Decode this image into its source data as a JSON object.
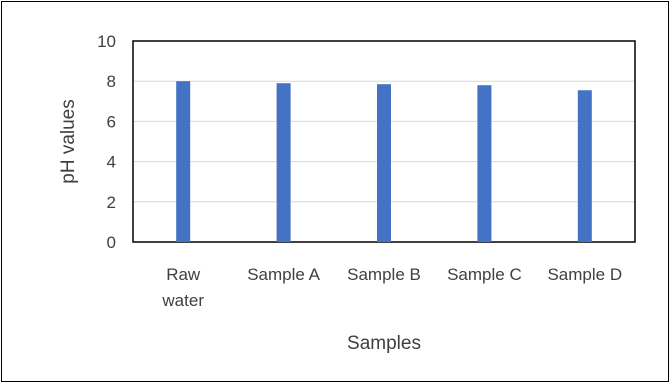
{
  "chart_data": {
    "type": "bar",
    "categories": [
      [
        "Raw",
        "water"
      ],
      [
        "Sample A"
      ],
      [
        "Sample B"
      ],
      [
        "Sample C"
      ],
      [
        "Sample D"
      ]
    ],
    "values": [
      8.0,
      7.9,
      7.85,
      7.8,
      7.55
    ],
    "xlabel": "Samples",
    "ylabel": "pH values",
    "ylim": [
      0,
      10
    ],
    "yticks": [
      0,
      2,
      4,
      6,
      8,
      10
    ],
    "grid": true,
    "legend": "none",
    "bar_color": "#4472C4",
    "grid_color": "#D9D9D9",
    "plot_border_color": "#000000"
  }
}
